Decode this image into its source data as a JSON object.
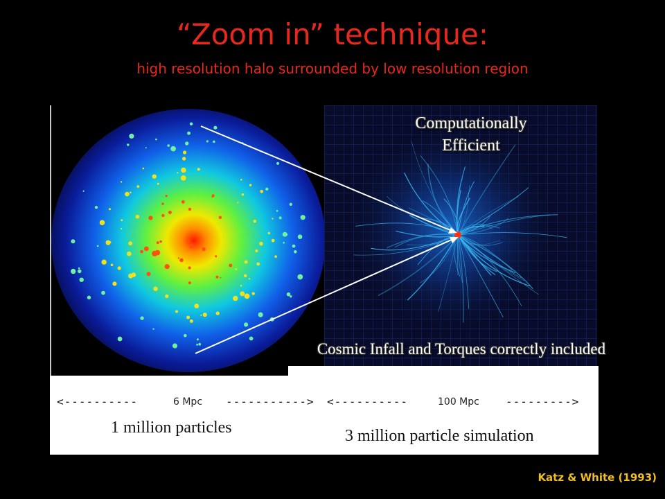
{
  "slide": {
    "title": "“Zoom in” technique:",
    "subtitle": "high resolution halo surrounded by low resolution region",
    "right_annotation_line1": "Computationally",
    "right_annotation_line2": "Efficient",
    "bottom_annotation": "Cosmic Infall and Torques correctly included",
    "left_scale": {
      "left_arrow": "<----------",
      "label": "6 Mpc",
      "right_arrow": "----------->"
    },
    "right_scale": {
      "left_arrow": "<----------",
      "label": "100 Mpc",
      "right_arrow": "--------->"
    },
    "left_caption": "1 million particles",
    "right_caption": "3 million particle simulation",
    "credit": "Katz & White (1993)"
  },
  "colors": {
    "title": "#e8281e",
    "credit": "#f0c020",
    "halo_core": "#ff2010",
    "halo_outer": "#1040e0",
    "filaments": "#30b0f0"
  }
}
